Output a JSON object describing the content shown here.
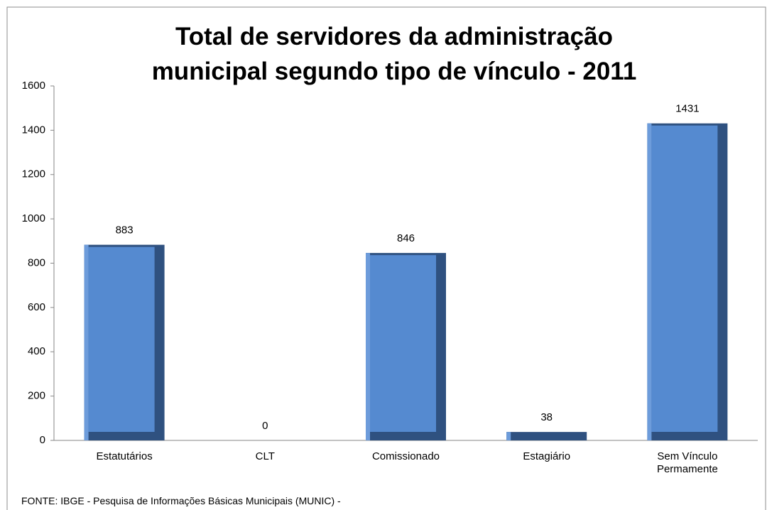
{
  "chart_data": {
    "type": "bar",
    "title": [
      "Total de servidores da administração",
      "municipal segundo tipo de vínculo - 2011"
    ],
    "categories": [
      "Estatutários",
      "CLT",
      "Comissionado",
      "Estagiário",
      "Sem Vínculo\nPermamente"
    ],
    "values": [
      883,
      0,
      846,
      38,
      1431
    ],
    "color": "#558ad0",
    "ylim": [
      0,
      1600
    ],
    "yticks": [
      0,
      200,
      400,
      600,
      800,
      1000,
      1200,
      1400,
      1600
    ],
    "grid": false,
    "source": "FONTE:  IBGE - Pesquisa de Informações Básicas Municipais (MUNIC) -"
  }
}
